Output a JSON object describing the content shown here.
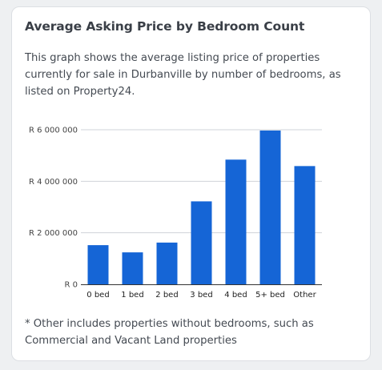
{
  "card": {
    "title": "Average Asking Price by Bedroom Count",
    "description": "This graph shows the average listing price of properties currently for sale in Durbanville by number of bedrooms, as listed on Property24.",
    "footnote": "* Other includes properties without bedrooms, such as Commercial and Vacant Land properties"
  },
  "colors": {
    "bar": "#1565d6",
    "grid": "#cfd3d8",
    "axis": "#333333"
  },
  "chart_data": {
    "type": "bar",
    "title": "",
    "xlabel": "",
    "ylabel": "",
    "categories": [
      "0 bed",
      "1 bed",
      "2 bed",
      "3 bed",
      "4 bed",
      "5+ bed",
      "Other"
    ],
    "values": [
      1520000,
      1240000,
      1620000,
      3220000,
      4840000,
      5970000,
      4590000
    ],
    "ylim": [
      0,
      6000000
    ],
    "yticks": [
      0,
      2000000,
      4000000,
      6000000
    ],
    "ytick_labels": [
      "R 0",
      "R 2 000 000",
      "R 4 000 000",
      "R 6 000 000"
    ],
    "grid": true,
    "legend": "none"
  }
}
